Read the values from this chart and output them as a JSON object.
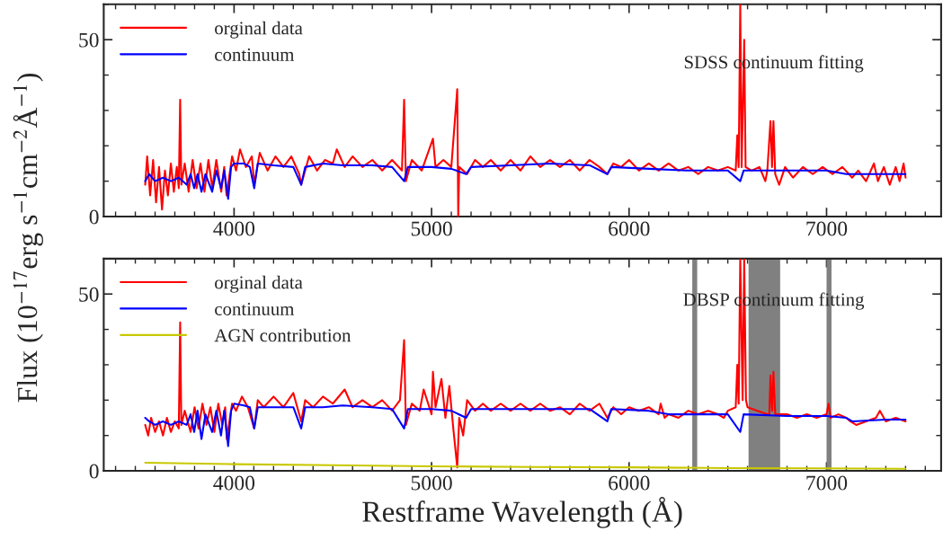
{
  "chart_data": [
    {
      "type": "line",
      "ylabel": "Flux (10$^{−17}$erg s$^{−1}$cm$^{−2}$Å$^{−1}$)",
      "annotations": [
        "SDSS continuum fitting"
      ],
      "legend": "top left",
      "grid": false,
      "xlim": [
        3340,
        7580
      ],
      "ylim": [
        0,
        60
      ],
      "xticks": [
        {
          "value": 3400,
          "label": null
        },
        {
          "value": 3500,
          "label": null
        },
        {
          "value": 3600,
          "label": null
        },
        {
          "value": 3700,
          "label": null
        },
        {
          "value": 3800,
          "label": null
        },
        {
          "value": 3900,
          "label": null
        },
        4000,
        {
          "value": 4100,
          "label": null
        },
        {
          "value": 4200,
          "label": null
        },
        {
          "value": 4300,
          "label": null
        },
        {
          "value": 4400,
          "label": null
        },
        {
          "value": 4500,
          "label": null
        },
        {
          "value": 4600,
          "label": null
        },
        {
          "value": 4700,
          "label": null
        },
        {
          "value": 4800,
          "label": null
        },
        {
          "value": 4900,
          "label": null
        },
        5000,
        {
          "value": 5100,
          "label": null
        },
        {
          "value": 5200,
          "label": null
        },
        {
          "value": 5300,
          "label": null
        },
        {
          "value": 5400,
          "label": null
        },
        {
          "value": 5500,
          "label": null
        },
        {
          "value": 5600,
          "label": null
        },
        {
          "value": 5700,
          "label": null
        },
        {
          "value": 5800,
          "label": null
        },
        {
          "value": 5900,
          "label": null
        },
        6000,
        {
          "value": 6100,
          "label": null
        },
        {
          "value": 6200,
          "label": null
        },
        {
          "value": 6300,
          "label": null
        },
        {
          "value": 6400,
          "label": null
        },
        {
          "value": 6500,
          "label": null
        },
        {
          "value": 6600,
          "label": null
        },
        {
          "value": 6700,
          "label": null
        },
        {
          "value": 6800,
          "label": null
        },
        {
          "value": 6900,
          "label": null
        },
        7000,
        {
          "value": 7100,
          "label": null
        },
        {
          "value": 7200,
          "label": null
        },
        {
          "value": 7300,
          "label": null
        },
        {
          "value": 7400,
          "label": null
        },
        {
          "value": 7500,
          "label": null
        }
      ],
      "yticks": [
        0,
        {
          "value": 10,
          "label": null
        },
        {
          "value": 20,
          "label": null
        },
        {
          "value": 30,
          "label": null
        },
        {
          "value": 40,
          "label": null
        },
        50,
        {
          "value": 60,
          "label": null
        }
      ],
      "series": [
        {
          "name": "orginal data",
          "color": "#ff0000",
          "x": [
            3550,
            3560,
            3575,
            3590,
            3605,
            3620,
            3635,
            3650,
            3665,
            3680,
            3695,
            3710,
            3720,
            3727,
            3733,
            3750,
            3770,
            3790,
            3810,
            3830,
            3850,
            3870,
            3890,
            3910,
            3935,
            3950,
            3962,
            3990,
            4010,
            4030,
            4060,
            4090,
            4102,
            4130,
            4170,
            4210,
            4250,
            4290,
            4330,
            4340,
            4380,
            4420,
            4460,
            4500,
            4520,
            4560,
            4600,
            4650,
            4700,
            4750,
            4800,
            4850,
            4861,
            4870,
            4900,
            4950,
            5007,
            5020,
            5060,
            5100,
            5130,
            5135,
            5140,
            5180,
            5220,
            5260,
            5300,
            5350,
            5400,
            5450,
            5500,
            5550,
            5600,
            5650,
            5700,
            5750,
            5800,
            5850,
            5890,
            5920,
            5960,
            6000,
            6050,
            6100,
            6150,
            6200,
            6250,
            6300,
            6350,
            6400,
            6450,
            6500,
            6540,
            6548,
            6555,
            6563,
            6570,
            6583,
            6590,
            6620,
            6660,
            6690,
            6700,
            6716,
            6724,
            6731,
            6740,
            6760,
            6790,
            6830,
            6880,
            6930,
            6980,
            7030,
            7080,
            7130,
            7160,
            7200,
            7240,
            7260,
            7290,
            7320,
            7350,
            7370,
            7390,
            7400
          ],
          "values": [
            9,
            17,
            6,
            16,
            4,
            14,
            2,
            13,
            6,
            15,
            7,
            14,
            8,
            33,
            9,
            15,
            7,
            16,
            8,
            15,
            7,
            16,
            8,
            16,
            7,
            14,
            6,
            17,
            13,
            19,
            14,
            17,
            9,
            18,
            13,
            17,
            14,
            17,
            12,
            9,
            17,
            13,
            16,
            15,
            19,
            14,
            17,
            14,
            16,
            13,
            16,
            13,
            33,
            10,
            16,
            13,
            22,
            14,
            16,
            14,
            36,
            0,
            14,
            12,
            16,
            14,
            16,
            13,
            16,
            13,
            17,
            14,
            16,
            14,
            16,
            13,
            16,
            14,
            12,
            15,
            14,
            16,
            13,
            15,
            13,
            15,
            13,
            14,
            12,
            14,
            13,
            14,
            13,
            23,
            14,
            60,
            14,
            50,
            14,
            13,
            14,
            10,
            13,
            27,
            14,
            27,
            12,
            9,
            14,
            11,
            14,
            12,
            14,
            12,
            14,
            11,
            13,
            10,
            15,
            10,
            14,
            9,
            14,
            10,
            15,
            11
          ]
        },
        {
          "name": "continuum",
          "color": "#0000ff",
          "x": [
            3550,
            3570,
            3600,
            3640,
            3680,
            3720,
            3760,
            3780,
            3798,
            3815,
            3835,
            3855,
            3889,
            3910,
            3934,
            3950,
            3970,
            3985,
            4000,
            4050,
            4080,
            4102,
            4120,
            4200,
            4300,
            4340,
            4360,
            4450,
            4550,
            4700,
            4800,
            4861,
            4880,
            5000,
            5100,
            5175,
            5200,
            5400,
            5600,
            5800,
            5890,
            5910,
            6100,
            6300,
            6500,
            6563,
            6580,
            6800,
            7000,
            7100,
            7300,
            7400
          ],
          "values": [
            10,
            12,
            10,
            11,
            10,
            11,
            9,
            12,
            8,
            12,
            7,
            12,
            7,
            13,
            8,
            13,
            5,
            14,
            15,
            15,
            14,
            8,
            15,
            14.5,
            14,
            9,
            14,
            15,
            14.5,
            14.5,
            14,
            10,
            14,
            14,
            13.5,
            12,
            14,
            14.5,
            15,
            14.5,
            12,
            14,
            13.5,
            13,
            13,
            10,
            13,
            13,
            13,
            12,
            12,
            12
          ]
        }
      ]
    },
    {
      "type": "line",
      "xlabel": "Restframe Wavelength (Å)",
      "annotations": [
        "DBSP continuum fitting"
      ],
      "legend": "top left",
      "grid": false,
      "xlim": [
        3340,
        7580
      ],
      "ylim": [
        0,
        60
      ],
      "xticks": [
        {
          "value": 3400,
          "label": null
        },
        {
          "value": 3500,
          "label": null
        },
        {
          "value": 3600,
          "label": null
        },
        {
          "value": 3700,
          "label": null
        },
        {
          "value": 3800,
          "label": null
        },
        {
          "value": 3900,
          "label": null
        },
        4000,
        {
          "value": 4100,
          "label": null
        },
        {
          "value": 4200,
          "label": null
        },
        {
          "value": 4300,
          "label": null
        },
        {
          "value": 4400,
          "label": null
        },
        {
          "value": 4500,
          "label": null
        },
        {
          "value": 4600,
          "label": null
        },
        {
          "value": 4700,
          "label": null
        },
        {
          "value": 4800,
          "label": null
        },
        {
          "value": 4900,
          "label": null
        },
        5000,
        {
          "value": 5100,
          "label": null
        },
        {
          "value": 5200,
          "label": null
        },
        {
          "value": 5300,
          "label": null
        },
        {
          "value": 5400,
          "label": null
        },
        {
          "value": 5500,
          "label": null
        },
        {
          "value": 5600,
          "label": null
        },
        {
          "value": 5700,
          "label": null
        },
        {
          "value": 5800,
          "label": null
        },
        {
          "value": 5900,
          "label": null
        },
        6000,
        {
          "value": 6100,
          "label": null
        },
        {
          "value": 6200,
          "label": null
        },
        {
          "value": 6300,
          "label": null
        },
        {
          "value": 6400,
          "label": null
        },
        {
          "value": 6500,
          "label": null
        },
        {
          "value": 6600,
          "label": null
        },
        {
          "value": 6700,
          "label": null
        },
        {
          "value": 6800,
          "label": null
        },
        {
          "value": 6900,
          "label": null
        },
        7000,
        {
          "value": 7100,
          "label": null
        },
        {
          "value": 7200,
          "label": null
        },
        {
          "value": 7300,
          "label": null
        },
        {
          "value": 7400,
          "label": null
        },
        {
          "value": 7500,
          "label": null
        }
      ],
      "yticks": [
        0,
        {
          "value": 10,
          "label": null
        },
        {
          "value": 20,
          "label": null
        },
        {
          "value": 30,
          "label": null
        },
        {
          "value": 40,
          "label": null
        },
        50,
        {
          "value": 60,
          "label": null
        }
      ],
      "bands": [
        {
          "axis": "x",
          "from": 6320,
          "to": 6345,
          "color": "#808080"
        },
        {
          "axis": "x",
          "from": 6605,
          "to": 6765,
          "color": "#808080"
        },
        {
          "axis": "x",
          "from": 7000,
          "to": 7025,
          "color": "#808080"
        }
      ],
      "series": [
        {
          "name": "orginal data",
          "color": "#ff0000",
          "x": [
            3550,
            3565,
            3580,
            3600,
            3620,
            3640,
            3660,
            3680,
            3700,
            3720,
            3727,
            3733,
            3750,
            3780,
            3800,
            3820,
            3840,
            3860,
            3880,
            3900,
            3920,
            3940,
            3955,
            3963,
            3990,
            4010,
            4040,
            4070,
            4102,
            4120,
            4150,
            4200,
            4250,
            4300,
            4340,
            4360,
            4400,
            4450,
            4500,
            4560,
            4600,
            4650,
            4700,
            4750,
            4800,
            4840,
            4861,
            4870,
            4900,
            4940,
            4960,
            5000,
            5007,
            5020,
            5050,
            5070,
            5090,
            5110,
            5130,
            5140,
            5160,
            5180,
            5220,
            5260,
            5300,
            5350,
            5400,
            5450,
            5500,
            5550,
            5600,
            5650,
            5700,
            5750,
            5800,
            5850,
            5890,
            5920,
            5960,
            6000,
            6050,
            6100,
            6150,
            6160,
            6180,
            6200,
            6250,
            6300,
            6350,
            6400,
            6450,
            6480,
            6500,
            6540,
            6548,
            6555,
            6563,
            6575,
            6583,
            6592,
            6600,
            6650,
            6700,
            6710,
            6716,
            6724,
            6731,
            6740,
            6800,
            6850,
            6900,
            6950,
            7000,
            7010,
            7020,
            7060,
            7100,
            7120,
            7150,
            7200,
            7250,
            7270,
            7300,
            7350,
            7400
          ],
          "values": [
            13,
            10,
            15,
            11,
            14,
            10,
            15,
            11,
            14,
            12,
            42,
            13,
            17,
            11,
            18,
            12,
            19,
            13,
            18,
            11,
            19,
            13,
            18,
            9,
            19,
            17,
            21,
            18,
            12,
            20,
            18,
            21,
            18,
            22,
            14,
            20,
            18,
            21,
            19,
            23,
            18,
            20,
            18,
            20,
            17,
            20,
            37,
            13,
            19,
            17,
            23,
            16,
            28,
            18,
            26,
            15,
            24,
            12,
            1,
            15,
            10,
            20,
            17,
            19,
            17,
            19,
            17,
            19,
            17,
            19,
            17,
            18,
            16,
            19,
            17,
            19,
            15,
            18,
            16,
            18,
            17,
            18,
            16,
            19,
            15,
            16,
            15,
            17,
            16,
            17,
            16,
            15,
            17,
            18,
            30,
            19,
            60,
            20,
            60,
            20,
            18,
            17,
            16,
            16,
            27,
            17,
            28,
            16,
            16,
            15,
            16,
            15,
            16,
            19,
            15,
            16,
            15,
            14,
            13,
            14,
            15,
            17,
            14,
            15,
            14
          ]
        },
        {
          "name": "continuum",
          "color": "#0000ff",
          "x": [
            3550,
            3570,
            3600,
            3640,
            3680,
            3720,
            3760,
            3780,
            3798,
            3815,
            3835,
            3855,
            3889,
            3910,
            3934,
            3950,
            3970,
            3985,
            4000,
            4050,
            4080,
            4102,
            4120,
            4200,
            4300,
            4340,
            4360,
            4450,
            4550,
            4700,
            4800,
            4861,
            4880,
            5000,
            5100,
            5175,
            5200,
            5400,
            5600,
            5800,
            5890,
            5910,
            6100,
            6200,
            6300,
            6500,
            6563,
            6580,
            6800,
            7000,
            7100,
            7130,
            7300,
            7400
          ],
          "values": [
            15,
            14,
            13,
            14,
            13,
            14,
            13,
            16,
            11,
            17,
            9,
            16,
            11,
            17,
            10,
            17,
            7,
            17,
            19,
            18.5,
            18,
            12,
            18,
            18,
            18,
            12,
            18,
            18,
            18.5,
            18,
            17.5,
            12,
            17.5,
            17.5,
            17,
            15,
            17.5,
            17.5,
            17.5,
            17.5,
            14,
            17.5,
            17,
            16,
            16,
            16,
            11,
            16,
            15.5,
            15.5,
            15,
            14,
            14.5,
            14.5
          ]
        },
        {
          "name": "AGN contribution",
          "color": "#c8c800",
          "x": [
            3550,
            4000,
            4500,
            5000,
            5500,
            6000,
            6500,
            7000,
            7400
          ],
          "values": [
            2.3,
            1.9,
            1.6,
            1.3,
            1.1,
            1.0,
            0.8,
            0.7,
            0.6
          ]
        }
      ]
    }
  ]
}
